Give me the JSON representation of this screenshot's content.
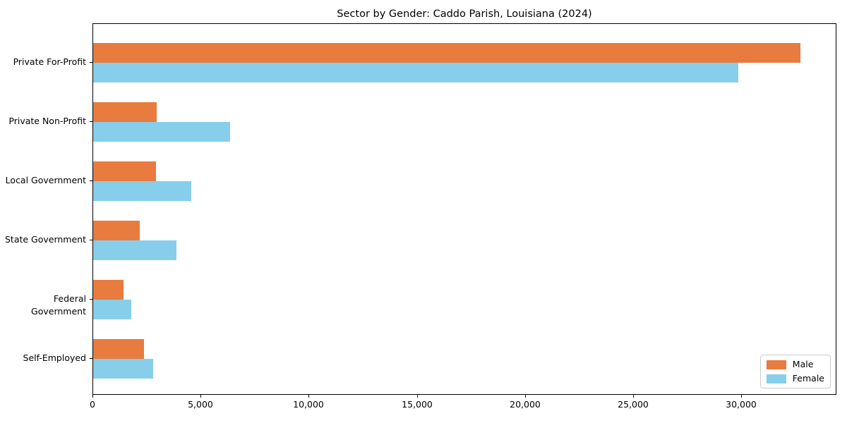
{
  "title": "Sector by Gender: Caddo Parish, Louisiana (2024)",
  "chart_data": {
    "type": "bar",
    "orientation": "horizontal",
    "title": "Sector by Gender: Caddo Parish, Louisiana (2024)",
    "categories": [
      "Private For-Profit",
      "Private Non-Profit",
      "Local Government",
      "State Government",
      "Federal Government",
      "Self-Employed"
    ],
    "series": [
      {
        "name": "Male",
        "color": "#e87b3e",
        "values": [
          32700,
          2950,
          2900,
          2170,
          1400,
          2360
        ]
      },
      {
        "name": "Female",
        "color": "#87ceeb",
        "values": [
          29850,
          6340,
          4530,
          3840,
          1760,
          2780
        ]
      }
    ],
    "xlabel": "",
    "ylabel": "",
    "xlim": [
      0,
      34340
    ],
    "xticks": [
      0,
      5000,
      10000,
      15000,
      20000,
      25000,
      30000
    ],
    "xtick_labels": [
      "0",
      "5,000",
      "10,000",
      "15,000",
      "20,000",
      "25,000",
      "30,000"
    ],
    "grid": false,
    "legend_position": "lower right",
    "plot_background": "#ffffff",
    "spine_color": "#000000"
  },
  "legend": {
    "items": [
      {
        "label": "Male",
        "color": "#e87b3e"
      },
      {
        "label": "Female",
        "color": "#87ceeb"
      }
    ]
  }
}
